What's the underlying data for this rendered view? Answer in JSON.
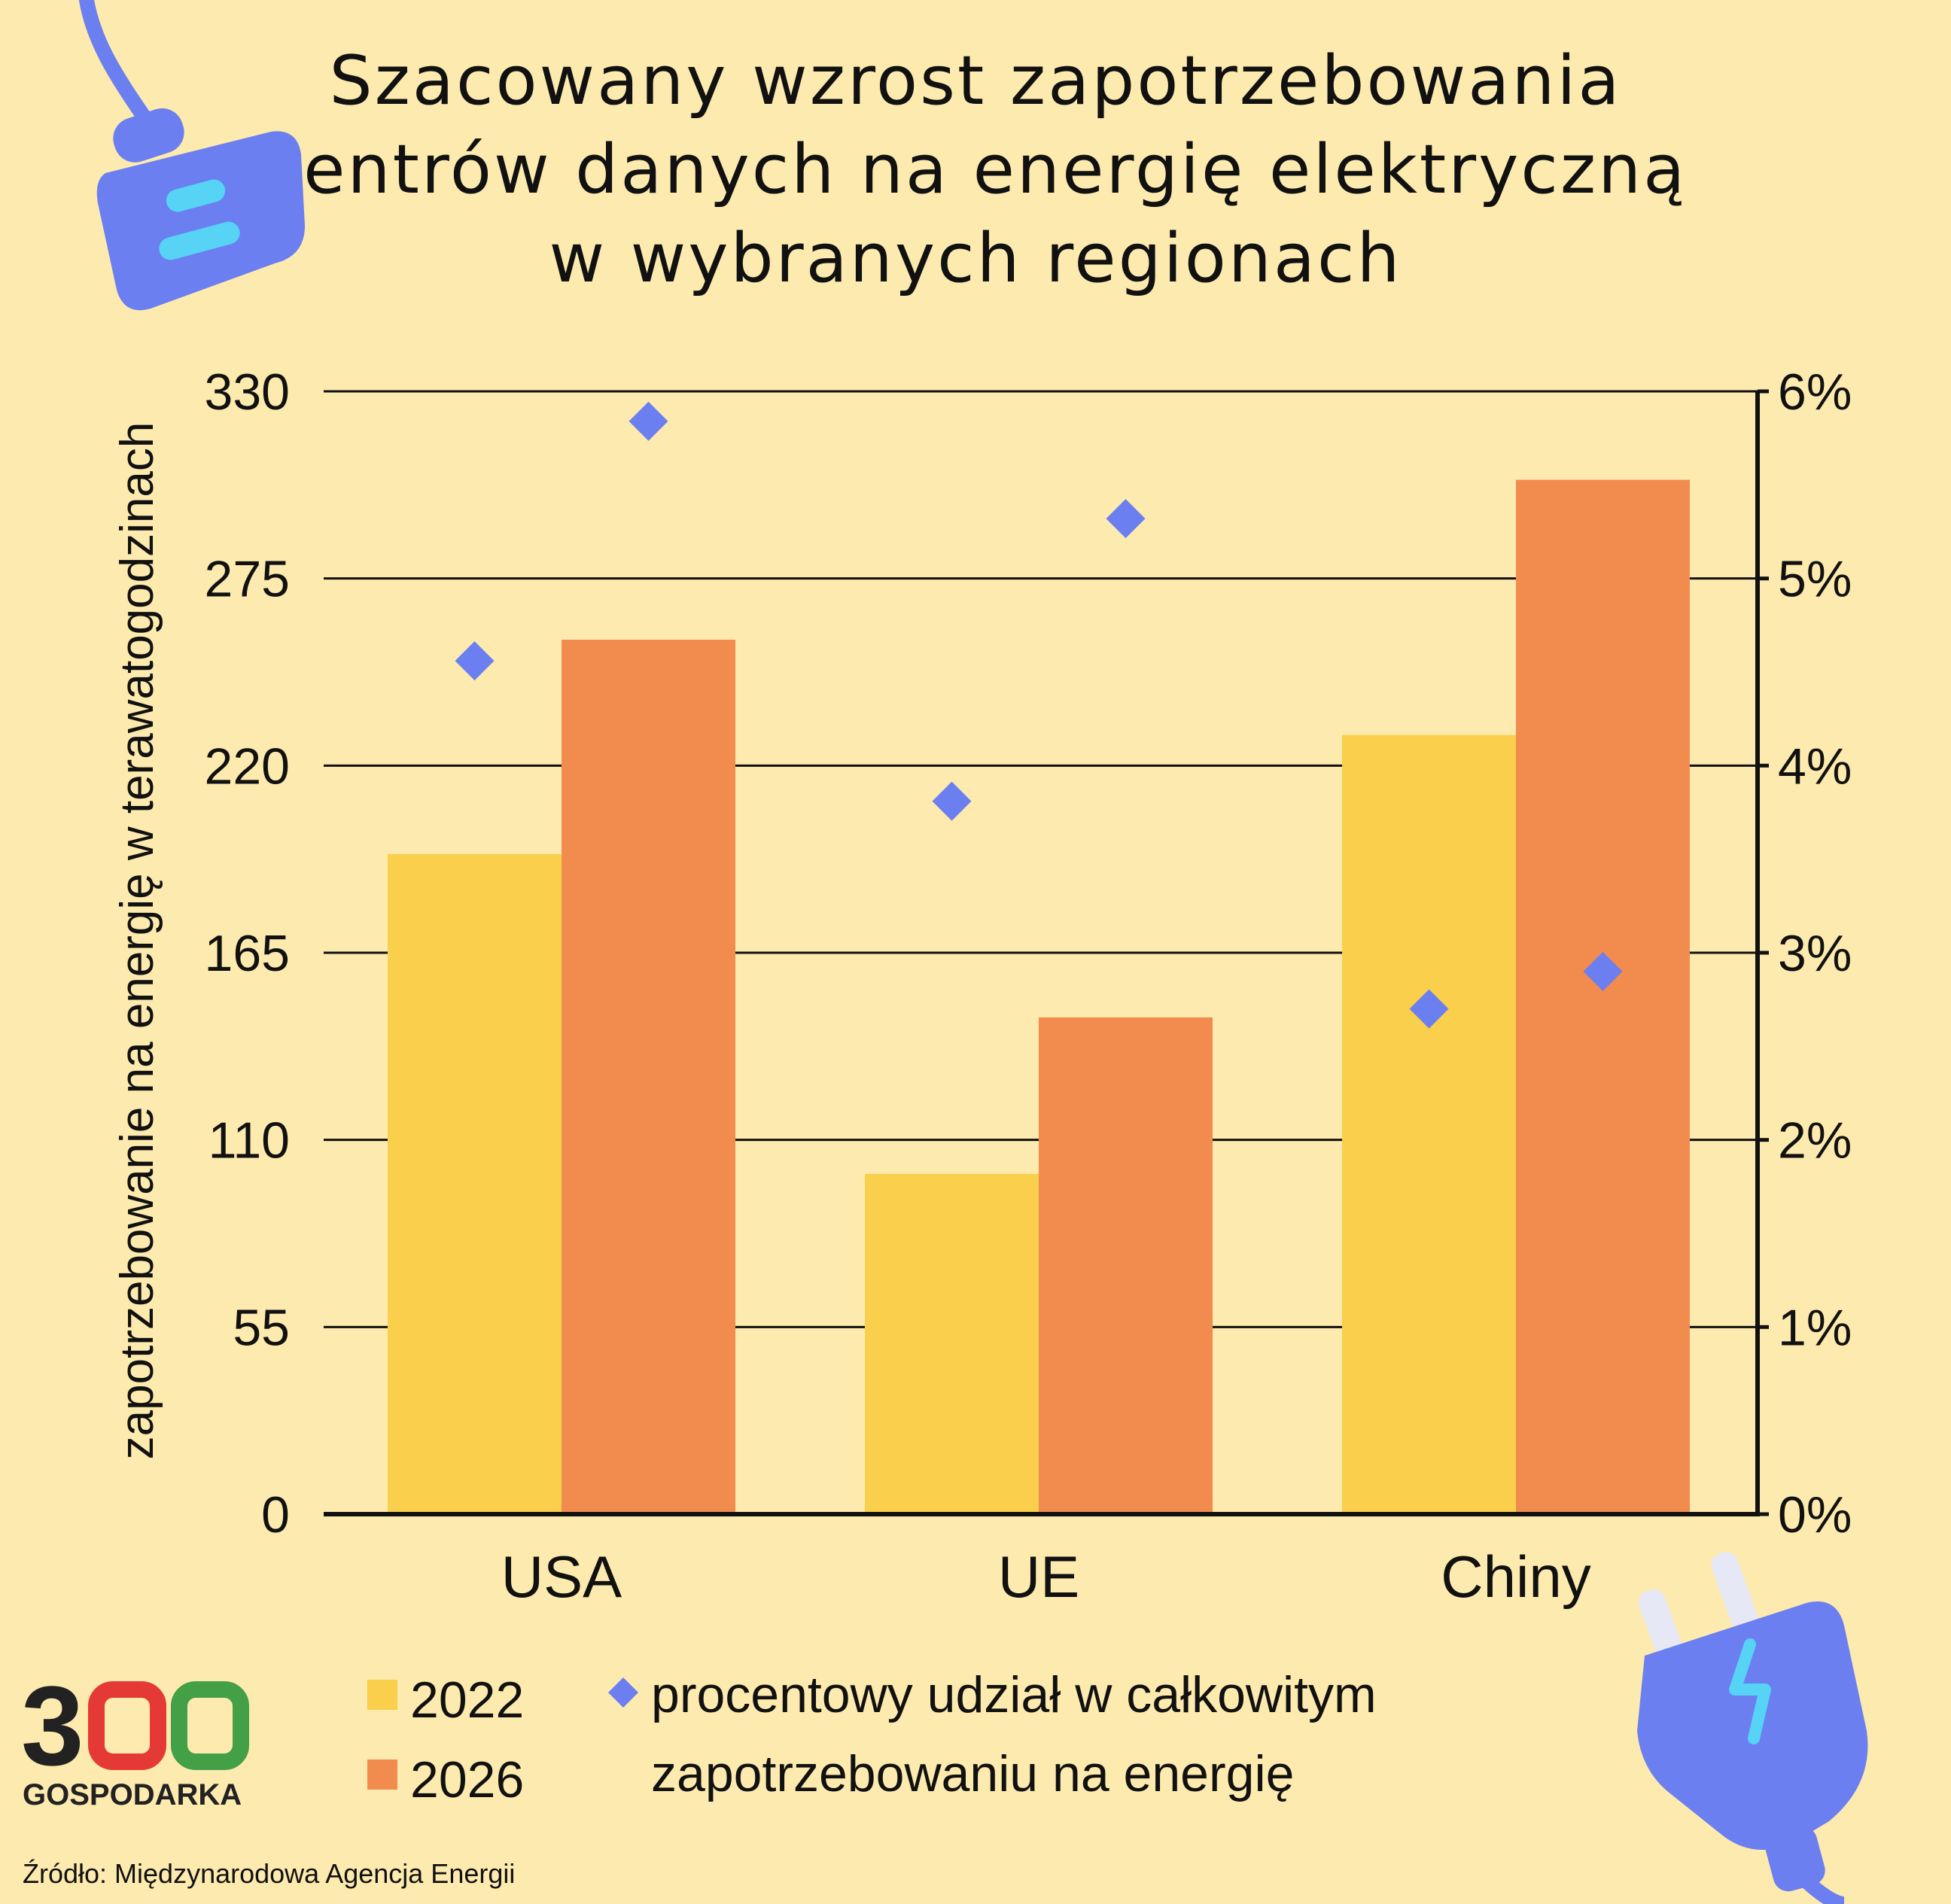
{
  "title_lines": [
    "Szacowany wzrost zapotrzebowania",
    "centrów danych na energię elektryczną",
    "w wybranych regionach"
  ],
  "logo": {
    "number": "300",
    "word": "GOSPODARKA",
    "colors": [
      "#222222",
      "#e53935",
      "#43a047"
    ]
  },
  "source": "Źródło: Międzynarodowa Agencja Energii",
  "icons": {
    "top_left": "plug-socket-icon",
    "bottom_right": "electric-plug-icon"
  },
  "colors": {
    "background": "#fdeaae",
    "bar_2022": "#f9cf4b",
    "bar_2026": "#f28b4e",
    "marker": "#6b7ff0",
    "axis": "#111111"
  },
  "chart_data": {
    "type": "bar",
    "categories": [
      "USA",
      "UE",
      "Chiny"
    ],
    "series": [
      {
        "name": "2022",
        "values": [
          194,
          100,
          229
        ]
      },
      {
        "name": "2026",
        "values": [
          257,
          146,
          304
        ]
      }
    ],
    "secondary_series": {
      "name": "procentowy udział w całkowitym zapotrzebowaniu na energię",
      "type": "scatter",
      "marker": "diamond",
      "values_2022": [
        4.56,
        3.81,
        2.7
      ],
      "values_2026": [
        5.84,
        5.32,
        2.9
      ]
    },
    "ylabel": "zapotrzebowanie na energię w terawatogodzinach",
    "ylim": [
      0,
      330
    ],
    "yticks": [
      "330",
      "275",
      "220",
      "165",
      "110",
      "55",
      "0"
    ],
    "y2lim": [
      0,
      6
    ],
    "y2ticks": [
      "6%",
      "5%",
      "4%",
      "3%",
      "2%",
      "1%",
      "0%"
    ],
    "grid": true,
    "legend_position": "bottom-left"
  },
  "legend": {
    "items": [
      "2022",
      "2026"
    ],
    "marker_label_lines": [
      "procentowy udział w całkowitym",
      "zapotrzebowaniu na energię"
    ]
  }
}
